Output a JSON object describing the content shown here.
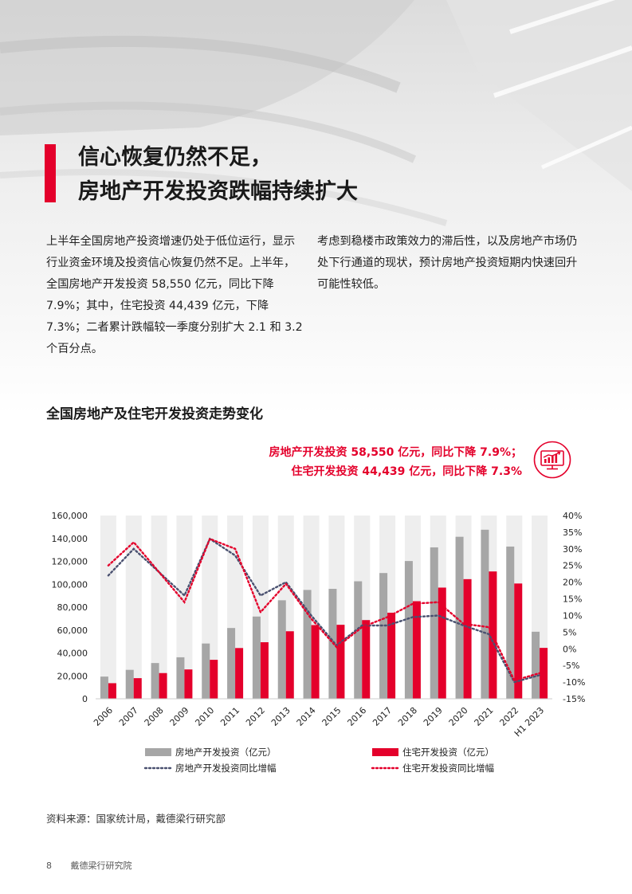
{
  "headline": {
    "line1": "信心恢复仍然不足，",
    "line2": "房地产开发投资跌幅持续扩大"
  },
  "body": {
    "left": "上半年全国房地产投资增速仍处于低位运行，显示行业资金环境及投资信心恢复仍然不足。上半年，全国房地产开发投资 58,550 亿元，同比下降 7.9%；其中，住宅投资 44,439 亿元，下降 7.3%；二者累计跌幅较一季度分别扩大 2.1 和 3.2 个百分点。",
    "right": "考虑到稳楼市政策效力的滞后性，以及房地产市场仍处下行通道的现状，预计房地产投资短期内快速回升可能性较低。"
  },
  "chart_title": "全国房地产及住宅开发投资走势变化",
  "callout": {
    "line1": "房地产开发投资 58,550 亿元，同比下降 7.9%；",
    "line2": "住宅开发投资 44,439 亿元，同比下降 7.3%"
  },
  "icon": "investment-chart-icon",
  "chart_data": {
    "type": "bar",
    "categories": [
      "2006",
      "2007",
      "2008",
      "2009",
      "2010",
      "2011",
      "2012",
      "2013",
      "2014",
      "2015",
      "2016",
      "2017",
      "2018",
      "2019",
      "2020",
      "2021",
      "2022",
      "H1 2023"
    ],
    "series": [
      {
        "name": "房地产开发投资（亿元）",
        "type": "bar",
        "axis": "left",
        "color": "#a6a6a6",
        "values": [
          19382,
          25280,
          31203,
          36242,
          48259,
          61796,
          71804,
          86013,
          95036,
          95979,
          102581,
          109799,
          120264,
          132194,
          141443,
          147602,
          132895,
          58550
        ]
      },
      {
        "name": "住宅开发投资（亿元）",
        "type": "bar",
        "axis": "left",
        "color": "#e4002b",
        "values": [
          13612,
          18005,
          22441,
          25614,
          34026,
          44308,
          49374,
          58951,
          64352,
          64595,
          68704,
          75148,
          85192,
          97071,
          104446,
          111173,
          100646,
          44439
        ]
      },
      {
        "name": "房地产开发投资同比增幅",
        "type": "line",
        "axis": "right",
        "color": "#4a5170",
        "values": [
          22,
          30,
          23,
          16,
          33,
          28,
          16,
          20,
          10,
          1,
          7,
          7,
          9.5,
          10,
          7,
          4.4,
          -10,
          -7.9
        ]
      },
      {
        "name": "住宅开发投资同比增幅",
        "type": "line",
        "axis": "right",
        "color": "#e4002b",
        "values": [
          25,
          32,
          23,
          14,
          33,
          30,
          11,
          19.5,
          9,
          0.5,
          6.5,
          9.5,
          13.5,
          14,
          7.5,
          6.5,
          -9.5,
          -7.3
        ]
      }
    ],
    "y_left": {
      "min": 0,
      "max": 160000,
      "ticks": [
        "0",
        "20,000",
        "40,000",
        "60,000",
        "80,000",
        "100,000",
        "120,000",
        "140,000",
        "160,000"
      ]
    },
    "y_right": {
      "min": -15,
      "max": 40,
      "ticks": [
        "-15%",
        "-10%",
        "-5%",
        "0%",
        "5%",
        "10%",
        "15%",
        "20%",
        "25%",
        "30%",
        "35%",
        "40%"
      ]
    },
    "legend_position": "bottom"
  },
  "source": "资料来源：国家统计局，戴德梁行研究部",
  "footer": {
    "page": "8",
    "org": "戴德梁行研究院"
  }
}
